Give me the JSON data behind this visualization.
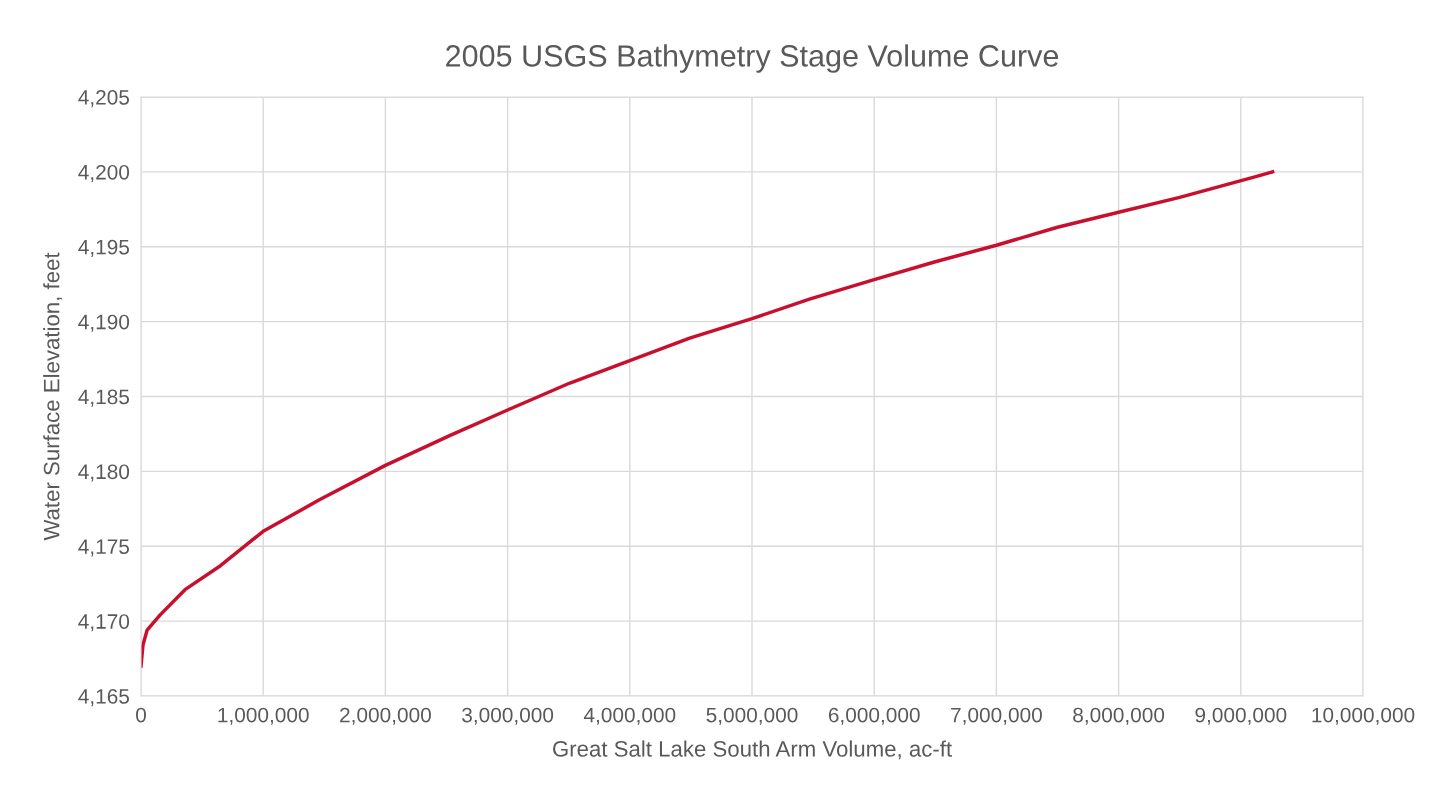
{
  "chart_data": {
    "type": "line",
    "title": "2005 USGS Bathymetry Stage Volume Curve",
    "xlabel": "Great Salt Lake South Arm Volume, ac-ft",
    "ylabel": "Water Surface Elevation, feet",
    "x": [
      0,
      16000,
      50000,
      155000,
      360000,
      650000,
      1000000,
      1460000,
      2000000,
      2530000,
      3000000,
      3510000,
      4000000,
      4490000,
      5000000,
      5470000,
      6000000,
      6500000,
      7000000,
      7500000,
      8000000,
      8500000,
      9130000,
      9260000
    ],
    "series": [
      {
        "color": "#c8102e",
        "values": [
          4167.0,
          4168.4,
          4169.4,
          4170.4,
          4172.1,
          4173.7,
          4176.0,
          4178.1,
          4180.4,
          4182.4,
          4184.1,
          4185.9,
          4187.4,
          4188.9,
          4190.2,
          4191.5,
          4192.8,
          4194.0,
          4195.1,
          4196.3,
          4197.3,
          4198.3,
          4199.7,
          4200.0
        ]
      }
    ],
    "xlim": [
      0,
      10000000
    ],
    "xticks": [
      0,
      {
        "value": 1000000,
        "label": "1,000,000"
      },
      {
        "value": 2000000,
        "label": "2,000,000"
      },
      {
        "value": 3000000,
        "label": "3,000,000"
      },
      {
        "value": 4000000,
        "label": "4,000,000"
      },
      {
        "value": 5000000,
        "label": "5,000,000"
      },
      {
        "value": 6000000,
        "label": "6,000,000"
      },
      {
        "value": 7000000,
        "label": "7,000,000"
      },
      {
        "value": 8000000,
        "label": "8,000,000"
      },
      {
        "value": 9000000,
        "label": "9,000,000"
      },
      {
        "value": 10000000,
        "label": "10,000,000"
      }
    ],
    "ylim": [
      4165,
      4205
    ],
    "yticks": [
      {
        "value": 4165,
        "label": "4,165"
      },
      {
        "value": 4170,
        "label": "4,170"
      },
      {
        "value": 4175,
        "label": "4,175"
      },
      {
        "value": 4180,
        "label": "4,180"
      },
      {
        "value": 4185,
        "label": "4,185"
      },
      {
        "value": 4190,
        "label": "4,190"
      },
      {
        "value": 4195,
        "label": "4,195"
      },
      {
        "value": 4200,
        "label": "4,200"
      },
      {
        "value": 4205,
        "label": "4,205"
      }
    ],
    "grid": true,
    "legend": false,
    "marker": "none",
    "line_style": "solid"
  }
}
